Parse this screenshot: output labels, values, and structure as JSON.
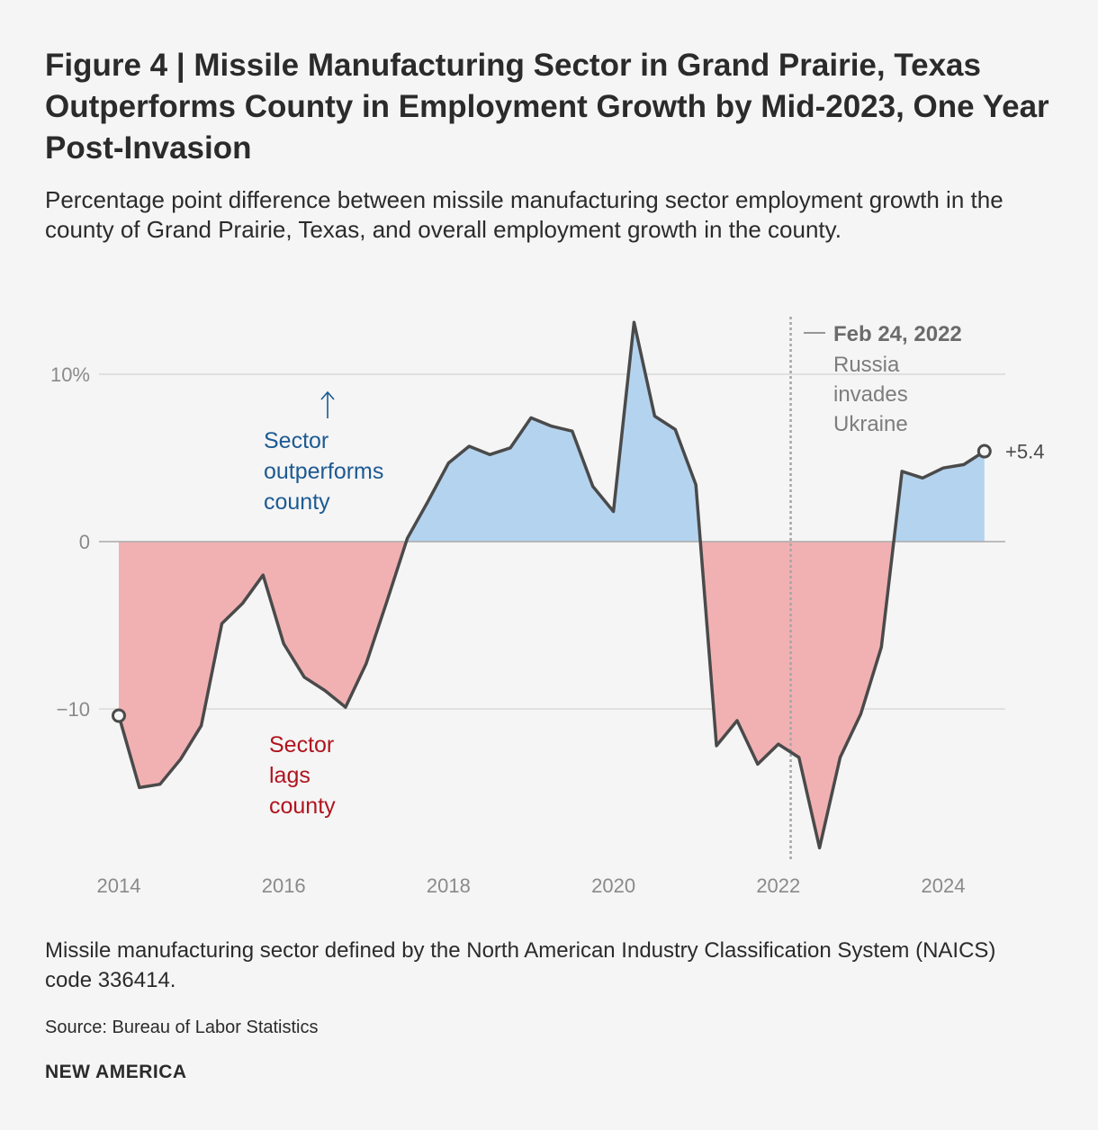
{
  "title": "Figure 4 | Missile Manufacturing Sector in Grand Prairie, Texas Outperforms County in Employment Growth by Mid-2023, One Year Post-Invasion",
  "subtitle": "Percentage point difference between missile manufacturing sector employment growth in the county of Grand Prairie, Texas, and overall employment growth in the county.",
  "footnote": "Missile manufacturing sector defined by the North American Industry Classification System (NAICS) code 336414.",
  "source": "Source: Bureau of Labor Statistics",
  "brand": "NEW AMERICA",
  "colors": {
    "positive_fill": "#b4d3ef",
    "negative_fill": "#f1b1b3",
    "line": "#4a4a4a",
    "positive_text": "#1d5a92",
    "negative_text": "#b0141e",
    "grid": "#d9d9d9",
    "axis_text": "#8a8a8a"
  },
  "chart_data": {
    "type": "area",
    "xlim": [
      2014,
      2024.7
    ],
    "ylim": [
      -19,
      14
    ],
    "y_ticks": [
      {
        "value": 10,
        "label": "10%"
      },
      {
        "value": 0,
        "label": "0"
      },
      {
        "value": -10,
        "label": "−10"
      }
    ],
    "x_ticks": [
      {
        "value": 2014,
        "label": "2014"
      },
      {
        "value": 2016,
        "label": "2016"
      },
      {
        "value": 2018,
        "label": "2018"
      },
      {
        "value": 2020,
        "label": "2020"
      },
      {
        "value": 2022,
        "label": "2022"
      },
      {
        "value": 2024,
        "label": "2024"
      }
    ],
    "grid": true,
    "series": [
      {
        "points": [
          [
            2014.0,
            -10.4
          ],
          [
            2014.25,
            -14.7
          ],
          [
            2014.5,
            -14.5
          ],
          [
            2014.75,
            -13.0
          ],
          [
            2015.0,
            -11.0
          ],
          [
            2015.25,
            -4.9
          ],
          [
            2015.5,
            -3.7
          ],
          [
            2015.75,
            -2.0
          ],
          [
            2016.0,
            -6.1
          ],
          [
            2016.25,
            -8.1
          ],
          [
            2016.5,
            -8.9
          ],
          [
            2016.75,
            -9.9
          ],
          [
            2017.0,
            -7.3
          ],
          [
            2017.25,
            -3.6
          ],
          [
            2017.5,
            0.2
          ],
          [
            2017.75,
            2.4
          ],
          [
            2018.0,
            4.7
          ],
          [
            2018.25,
            5.7
          ],
          [
            2018.5,
            5.2
          ],
          [
            2018.75,
            5.6
          ],
          [
            2019.0,
            7.4
          ],
          [
            2019.25,
            6.9
          ],
          [
            2019.5,
            6.6
          ],
          [
            2019.75,
            3.3
          ],
          [
            2020.0,
            1.8
          ],
          [
            2020.25,
            13.1
          ],
          [
            2020.5,
            7.5
          ],
          [
            2020.75,
            6.7
          ],
          [
            2021.0,
            3.4
          ],
          [
            2021.25,
            -12.2
          ],
          [
            2021.5,
            -10.7
          ],
          [
            2021.75,
            -13.3
          ],
          [
            2022.0,
            -12.1
          ],
          [
            2022.25,
            -12.9
          ],
          [
            2022.5,
            -18.3
          ],
          [
            2022.75,
            -12.9
          ],
          [
            2023.0,
            -10.3
          ],
          [
            2023.25,
            -6.3
          ],
          [
            2023.5,
            4.2
          ],
          [
            2023.75,
            3.8
          ],
          [
            2024.0,
            4.4
          ],
          [
            2024.25,
            4.6
          ],
          [
            2024.5,
            5.4
          ]
        ]
      }
    ],
    "event": {
      "x": 2022.15,
      "date_label": "Feb 24, 2022",
      "text_lines": [
        "Russia",
        "invades",
        "Ukraine"
      ]
    },
    "end_label": "+5.4",
    "annotations": {
      "positive": [
        "Sector",
        "outperforms",
        "county"
      ],
      "negative": [
        "Sector",
        "lags",
        "county"
      ]
    }
  }
}
